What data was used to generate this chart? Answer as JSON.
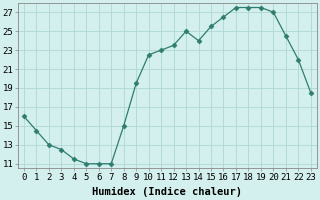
{
  "x": [
    0,
    1,
    2,
    3,
    4,
    5,
    6,
    7,
    8,
    9,
    10,
    11,
    12,
    13,
    14,
    15,
    16,
    17,
    18,
    19,
    20,
    21,
    22,
    23
  ],
  "y": [
    16,
    14.5,
    13,
    12.5,
    11.5,
    11,
    11,
    11,
    15,
    19.5,
    22.5,
    23,
    23.5,
    25,
    24,
    25.5,
    26.5,
    27.5,
    27.5,
    27.5,
    27,
    24.5,
    22,
    18.5
  ],
  "line_color": "#2e7d6e",
  "marker": "D",
  "marker_size": 2.5,
  "bg_color": "#d4f0ee",
  "grid_color": "#b0d8d5",
  "xlabel": "Humidex (Indice chaleur)",
  "xlabel_fontsize": 7.5,
  "xlim": [
    -0.5,
    23.5
  ],
  "ylim": [
    10.5,
    28
  ],
  "yticks": [
    11,
    13,
    15,
    17,
    19,
    21,
    23,
    25,
    27
  ],
  "xtick_labels": [
    "0",
    "1",
    "2",
    "3",
    "4",
    "5",
    "6",
    "7",
    "8",
    "9",
    "10",
    "11",
    "12",
    "13",
    "14",
    "15",
    "16",
    "17",
    "18",
    "19",
    "20",
    "21",
    "22",
    "23"
  ],
  "tick_fontsize": 6.5
}
